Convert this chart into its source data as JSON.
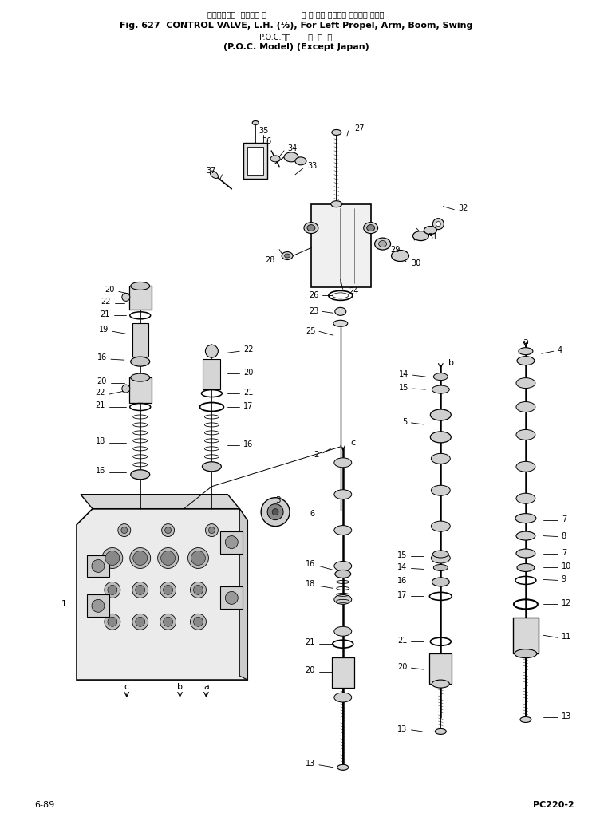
{
  "bg_color": "#ffffff",
  "title_line1": "コントロール  バルブ， 左              左 走 行， アーム， ブーム， 旋回用",
  "title_line2": "Fig. 627  CONTROL VALVE, L.H. (⅓), For Left Propel, Arm, Boom, Swing",
  "title_line3": "P.O.C.仕様       海  外  向",
  "title_line4": "(P.O.C. Model) (Except Japan)",
  "footer_left": "6-89",
  "footer_right": "PC220-2",
  "fig_width": 7.42,
  "fig_height": 10.29,
  "dpi": 100
}
